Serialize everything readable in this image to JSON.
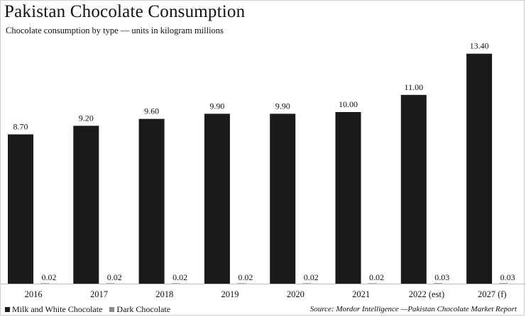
{
  "title": "Pakistan Chocolate Consumption",
  "subtitle": "Chocolate consumption by type — units in kilogram millions",
  "source": "Source: Mordor Intelligence —Pakistan Chocolate Market Report",
  "legend": [
    {
      "label": "Milk and White Chocolate",
      "color": "#1a1a1a"
    },
    {
      "label": "Dark Chocolate",
      "color": "#8a8a8a"
    }
  ],
  "chart_data": {
    "type": "bar",
    "title": "Pakistan Chocolate Consumption",
    "subtitle": "Chocolate consumption by type — units in kilogram millions",
    "xlabel": "",
    "ylabel": "",
    "categories": [
      "2016",
      "2017",
      "2018",
      "2019",
      "2020",
      "2021",
      "2022 (est)",
      "2027 (f)"
    ],
    "series": [
      {
        "name": "Milk and White Chocolate",
        "color": "#1a1a1a",
        "values": [
          8.7,
          9.2,
          9.6,
          9.9,
          9.9,
          10.0,
          11.0,
          13.4
        ],
        "labels": [
          "8.70",
          "9.20",
          "9.60",
          "9.90",
          "9.90",
          "10.00",
          "11.00",
          "13.40"
        ]
      },
      {
        "name": "Dark Chocolate",
        "color": "#8a8a8a",
        "values": [
          0.02,
          0.02,
          0.02,
          0.02,
          0.02,
          0.02,
          0.03,
          0.03
        ],
        "labels": [
          "0.02",
          "0.02",
          "0.02",
          "0.02",
          "0.02",
          "0.02",
          "0.03",
          "0.03"
        ]
      }
    ],
    "ylim": [
      0,
      14
    ],
    "grid": false,
    "legend_position": "bottom-left"
  }
}
